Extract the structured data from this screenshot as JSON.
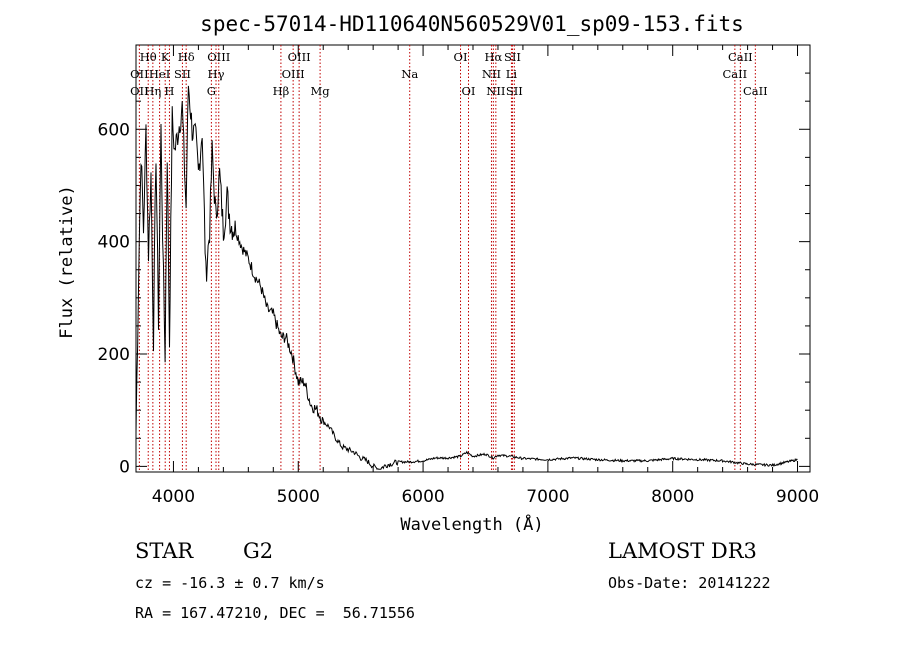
{
  "chart_data": {
    "type": "line",
    "title": "spec-57014-HD110640N560529V01_sp09-153.fits",
    "xlabel": "Wavelength (Å)",
    "ylabel": "Flux (relative)",
    "xlim": [
      3700,
      9100
    ],
    "ylim": [
      -10,
      750
    ],
    "xticks": [
      4000,
      5000,
      6000,
      7000,
      8000,
      9000
    ],
    "yticks": [
      0,
      200,
      400,
      600
    ],
    "series": [
      {
        "name": "flux",
        "x": [
          3700,
          3720,
          3740,
          3760,
          3780,
          3800,
          3820,
          3840,
          3860,
          3880,
          3900,
          3920,
          3933,
          3950,
          3968,
          3990,
          4010,
          4040,
          4070,
          4101,
          4120,
          4150,
          4180,
          4200,
          4230,
          4260,
          4290,
          4310,
          4340,
          4370,
          4400,
          4430,
          4460,
          4500,
          4550,
          4600,
          4650,
          4700,
          4750,
          4800,
          4861,
          4900,
          4950,
          5000,
          5050,
          5100,
          5150,
          5200,
          5250,
          5300,
          5350,
          5400,
          5450,
          5500,
          5550,
          5600,
          5650,
          5700,
          5750,
          5800,
          5900,
          6000,
          6100,
          6200,
          6300,
          6350,
          6400,
          6500,
          6563,
          6600,
          6700,
          6800,
          7000,
          7200,
          7400,
          7600,
          7800,
          8000,
          8200,
          8400,
          8600,
          8800,
          9000
        ],
        "values": [
          60,
          330,
          560,
          420,
          600,
          380,
          520,
          230,
          560,
          260,
          600,
          330,
          200,
          560,
          220,
          620,
          560,
          600,
          640,
          460,
          680,
          600,
          580,
          520,
          600,
          340,
          420,
          560,
          440,
          520,
          420,
          480,
          430,
          420,
          390,
          370,
          340,
          320,
          280,
          270,
          230,
          230,
          200,
          150,
          150,
          110,
          100,
          80,
          70,
          50,
          35,
          30,
          25,
          15,
          10,
          0,
          -5,
          2,
          5,
          8,
          8,
          10,
          15,
          15,
          18,
          25,
          18,
          22,
          15,
          20,
          18,
          14,
          12,
          15,
          12,
          10,
          10,
          14,
          12,
          10,
          4,
          2,
          12
        ]
      }
    ],
    "lines": [
      {
        "name": "Hθ",
        "wave": 3798,
        "row": 1
      },
      {
        "name": "OII",
        "wave": 3727,
        "row": 2
      },
      {
        "name": "OII",
        "wave": 3727,
        "row": 3
      },
      {
        "name": "Hη",
        "wave": 3835,
        "row": 3
      },
      {
        "name": "HeI",
        "wave": 3889,
        "row": 2
      },
      {
        "name": "K",
        "wave": 3934,
        "row": 1
      },
      {
        "name": "SII",
        "wave": 4072,
        "row": 2
      },
      {
        "name": "H",
        "wave": 3968,
        "row": 3
      },
      {
        "name": "Hδ",
        "wave": 4102,
        "row": 1
      },
      {
        "name": "OIII",
        "wave": 4363,
        "row": 1
      },
      {
        "name": "Hγ",
        "wave": 4341,
        "row": 2
      },
      {
        "name": "G",
        "wave": 4304,
        "row": 3
      },
      {
        "name": "Hβ",
        "wave": 4861,
        "row": 3
      },
      {
        "name": "OIII",
        "wave": 5007,
        "row": 1
      },
      {
        "name": "OIII",
        "wave": 4959,
        "row": 2
      },
      {
        "name": "Mg",
        "wave": 5175,
        "row": 3
      },
      {
        "name": "Na",
        "wave": 5893,
        "row": 2
      },
      {
        "name": "OI",
        "wave": 6300,
        "row": 1
      },
      {
        "name": "OI",
        "wave": 6364,
        "row": 3
      },
      {
        "name": "Hα",
        "wave": 6563,
        "row": 1
      },
      {
        "name": "NII",
        "wave": 6548,
        "row": 2
      },
      {
        "name": "NII",
        "wave": 6583,
        "row": 3
      },
      {
        "name": "SII",
        "wave": 6716,
        "row": 1
      },
      {
        "name": "Li",
        "wave": 6708,
        "row": 2
      },
      {
        "name": "SII",
        "wave": 6731,
        "row": 3
      },
      {
        "name": "CaII",
        "wave": 8542,
        "row": 1
      },
      {
        "name": "CaII",
        "wave": 8498,
        "row": 2
      },
      {
        "name": "CaII",
        "wave": 8662,
        "row": 3
      }
    ]
  },
  "info": {
    "class": "STAR",
    "subclass": "G2",
    "survey": "LAMOST DR3",
    "cz": "cz = -16.3 ± 0.7 km/s",
    "obsdate": "Obs-Date: 20141222",
    "radec": "RA = 167.47210, DEC =  56.71556"
  }
}
